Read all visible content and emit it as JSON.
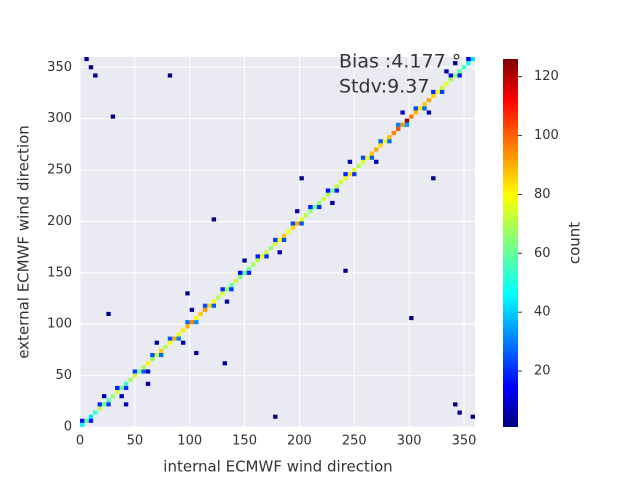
{
  "chart_data": {
    "type": "hist2d",
    "xlabel": "internal ECMWF wind direction",
    "ylabel": "external ECMWF wind direction",
    "annotations": [
      "Bias :4.177 °",
      "Stdv:9.37"
    ],
    "colorbar_label": "count",
    "colormap": "jet",
    "xlim": [
      0,
      360
    ],
    "ylim": [
      0,
      360
    ],
    "xticks": [
      0,
      50,
      100,
      150,
      200,
      250,
      300,
      350
    ],
    "yticks": [
      0,
      50,
      100,
      150,
      200,
      250,
      300,
      350
    ],
    "clim": [
      1,
      126
    ],
    "cticks": [
      20,
      40,
      60,
      80,
      100,
      120
    ],
    "bin_width": 4,
    "grid": true,
    "cells": [
      [
        0,
        0,
        50
      ],
      [
        4,
        4,
        60
      ],
      [
        8,
        8,
        45
      ],
      [
        12,
        12,
        55
      ],
      [
        16,
        16,
        70
      ],
      [
        20,
        20,
        62
      ],
      [
        24,
        24,
        58
      ],
      [
        28,
        28,
        66
      ],
      [
        32,
        32,
        72
      ],
      [
        36,
        36,
        60
      ],
      [
        40,
        40,
        55
      ],
      [
        44,
        44,
        68
      ],
      [
        48,
        48,
        74
      ],
      [
        52,
        52,
        63
      ],
      [
        56,
        56,
        70
      ],
      [
        60,
        60,
        80
      ],
      [
        64,
        64,
        66
      ],
      [
        68,
        68,
        72
      ],
      [
        72,
        72,
        85
      ],
      [
        76,
        76,
        70
      ],
      [
        80,
        80,
        78
      ],
      [
        84,
        84,
        90
      ],
      [
        88,
        88,
        76
      ],
      [
        92,
        92,
        82
      ],
      [
        96,
        96,
        88
      ],
      [
        100,
        100,
        95
      ],
      [
        104,
        104,
        80
      ],
      [
        108,
        108,
        86
      ],
      [
        112,
        112,
        92
      ],
      [
        116,
        116,
        84
      ],
      [
        120,
        120,
        78
      ],
      [
        124,
        124,
        70
      ],
      [
        128,
        128,
        74
      ],
      [
        132,
        132,
        66
      ],
      [
        136,
        136,
        60
      ],
      [
        140,
        140,
        72
      ],
      [
        144,
        144,
        64
      ],
      [
        148,
        148,
        58
      ],
      [
        152,
        152,
        62
      ],
      [
        156,
        156,
        68
      ],
      [
        160,
        160,
        70
      ],
      [
        164,
        164,
        76
      ],
      [
        168,
        168,
        72
      ],
      [
        172,
        172,
        66
      ],
      [
        176,
        176,
        74
      ],
      [
        180,
        180,
        80
      ],
      [
        184,
        184,
        86
      ],
      [
        188,
        188,
        78
      ],
      [
        192,
        192,
        84
      ],
      [
        196,
        196,
        90
      ],
      [
        200,
        200,
        76
      ],
      [
        204,
        204,
        70
      ],
      [
        208,
        208,
        64
      ],
      [
        212,
        212,
        60
      ],
      [
        216,
        216,
        66
      ],
      [
        220,
        220,
        72
      ],
      [
        224,
        224,
        68
      ],
      [
        228,
        228,
        62
      ],
      [
        232,
        232,
        70
      ],
      [
        236,
        236,
        74
      ],
      [
        240,
        240,
        78
      ],
      [
        244,
        244,
        82
      ],
      [
        248,
        248,
        76
      ],
      [
        252,
        252,
        70
      ],
      [
        256,
        256,
        74
      ],
      [
        260,
        260,
        80
      ],
      [
        264,
        264,
        86
      ],
      [
        268,
        268,
        90
      ],
      [
        272,
        272,
        84
      ],
      [
        276,
        276,
        78
      ],
      [
        280,
        280,
        88
      ],
      [
        284,
        284,
        94
      ],
      [
        288,
        288,
        100
      ],
      [
        292,
        292,
        92
      ],
      [
        296,
        296,
        126
      ],
      [
        300,
        300,
        96
      ],
      [
        304,
        304,
        88
      ],
      [
        308,
        308,
        82
      ],
      [
        312,
        312,
        86
      ],
      [
        316,
        316,
        90
      ],
      [
        320,
        320,
        84
      ],
      [
        324,
        324,
        78
      ],
      [
        328,
        328,
        72
      ],
      [
        332,
        332,
        76
      ],
      [
        336,
        336,
        70
      ],
      [
        340,
        340,
        66
      ],
      [
        344,
        344,
        60
      ],
      [
        348,
        348,
        56
      ],
      [
        352,
        352,
        50
      ],
      [
        356,
        356,
        44
      ],
      [
        0,
        4,
        18
      ],
      [
        16,
        20,
        22
      ],
      [
        32,
        36,
        20
      ],
      [
        48,
        52,
        24
      ],
      [
        64,
        68,
        26
      ],
      [
        80,
        84,
        28
      ],
      [
        96,
        100,
        30
      ],
      [
        112,
        116,
        26
      ],
      [
        128,
        132,
        22
      ],
      [
        144,
        148,
        18
      ],
      [
        160,
        164,
        20
      ],
      [
        176,
        180,
        24
      ],
      [
        192,
        196,
        26
      ],
      [
        208,
        212,
        20
      ],
      [
        224,
        228,
        18
      ],
      [
        240,
        244,
        22
      ],
      [
        256,
        260,
        26
      ],
      [
        272,
        276,
        28
      ],
      [
        288,
        292,
        32
      ],
      [
        304,
        308,
        26
      ],
      [
        320,
        324,
        22
      ],
      [
        336,
        340,
        18
      ],
      [
        352,
        356,
        14
      ],
      [
        8,
        4,
        20
      ],
      [
        24,
        20,
        24
      ],
      [
        40,
        36,
        22
      ],
      [
        56,
        52,
        28
      ],
      [
        72,
        68,
        30
      ],
      [
        88,
        84,
        32
      ],
      [
        104,
        100,
        34
      ],
      [
        120,
        116,
        28
      ],
      [
        136,
        132,
        24
      ],
      [
        152,
        148,
        20
      ],
      [
        168,
        164,
        22
      ],
      [
        184,
        180,
        26
      ],
      [
        200,
        196,
        28
      ],
      [
        216,
        212,
        22
      ],
      [
        232,
        228,
        20
      ],
      [
        248,
        244,
        24
      ],
      [
        264,
        260,
        28
      ],
      [
        280,
        276,
        30
      ],
      [
        296,
        292,
        36
      ],
      [
        312,
        308,
        28
      ],
      [
        328,
        324,
        24
      ],
      [
        344,
        340,
        20
      ],
      [
        20,
        28,
        8
      ],
      [
        36,
        28,
        10
      ],
      [
        60,
        52,
        9
      ],
      [
        68,
        80,
        7
      ],
      [
        92,
        80,
        8
      ],
      [
        100,
        112,
        6
      ],
      [
        132,
        120,
        7
      ],
      [
        148,
        160,
        5
      ],
      [
        180,
        168,
        6
      ],
      [
        196,
        208,
        7
      ],
      [
        228,
        216,
        6
      ],
      [
        244,
        256,
        8
      ],
      [
        268,
        256,
        7
      ],
      [
        292,
        304,
        9
      ],
      [
        316,
        304,
        6
      ],
      [
        332,
        344,
        7
      ],
      [
        340,
        352,
        5
      ],
      [
        4,
        356,
        4
      ],
      [
        8,
        348,
        3
      ],
      [
        12,
        340,
        2
      ],
      [
        24,
        108,
        3
      ],
      [
        28,
        300,
        1
      ],
      [
        40,
        20,
        8
      ],
      [
        60,
        40,
        6
      ],
      [
        96,
        128,
        3
      ],
      [
        104,
        70,
        4
      ],
      [
        130,
        60,
        5
      ],
      [
        176,
        8,
        2
      ],
      [
        200,
        240,
        2
      ],
      [
        240,
        150,
        3
      ],
      [
        300,
        104,
        2
      ],
      [
        320,
        240,
        1
      ],
      [
        356,
        8,
        3
      ],
      [
        344,
        12,
        4
      ],
      [
        340,
        20,
        2
      ],
      [
        120,
        200,
        1
      ],
      [
        80,
        340,
        1
      ]
    ]
  }
}
